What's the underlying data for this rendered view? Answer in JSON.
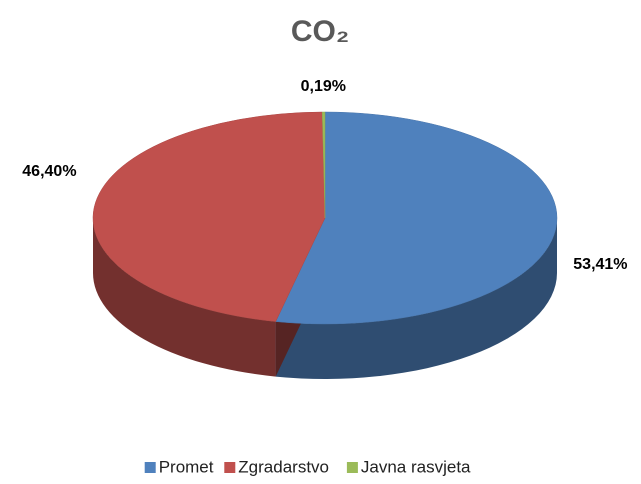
{
  "chart_data": {
    "type": "pie",
    "title": "CO₂",
    "categories": [
      "Promet",
      "Zgradarstvo",
      "Javna rasvjeta"
    ],
    "values": [
      53.41,
      46.4,
      0.19
    ],
    "value_labels": [
      "53,41%",
      "46,40%",
      "0,19%"
    ],
    "colors": [
      "#4f81bd",
      "#c0504d",
      "#9bbb59"
    ],
    "legend": "bottom"
  }
}
